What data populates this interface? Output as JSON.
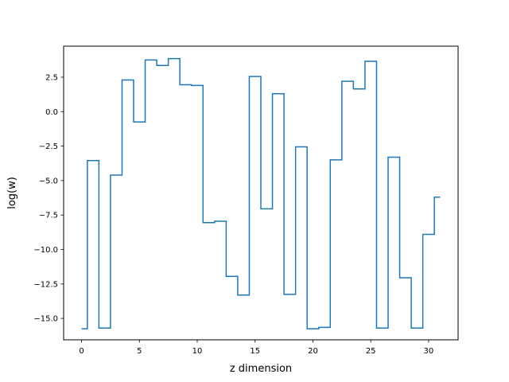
{
  "chart_data": {
    "type": "line",
    "drawstyle": "steps-post",
    "title": "",
    "xlabel": "z dimension",
    "ylabel": "log(w)",
    "xlim": [
      -1.55,
      32.55
    ],
    "ylim": [
      -16.55,
      4.75
    ],
    "xticks": [
      0,
      5,
      10,
      15,
      20,
      25,
      30
    ],
    "xtick_labels": [
      "0",
      "5",
      "10",
      "15",
      "20",
      "25",
      "30"
    ],
    "yticks": [
      -15.0,
      -12.5,
      -10.0,
      -7.5,
      -5.0,
      -2.5,
      0.0,
      2.5
    ],
    "ytick_labels": [
      "−15.0",
      "−12.5",
      "−10.0",
      "−7.5",
      "−5.0",
      "−2.5",
      "0.0",
      "2.5"
    ],
    "grid": false,
    "series": [
      {
        "color": "#1f77b4",
        "x": [
          0,
          0.5,
          1.5,
          2.5,
          3.5,
          4.5,
          5.5,
          6.5,
          7.5,
          8.5,
          9.5,
          10.5,
          11.5,
          12.5,
          13.5,
          14.5,
          15.5,
          16.5,
          17.5,
          18.5,
          19.5,
          20.5,
          21.5,
          22.5,
          23.5,
          24.5,
          25.5,
          26.5,
          27.5,
          28.5,
          29.5,
          30.5,
          31.0
        ],
        "y": [
          -15.75,
          -3.55,
          -15.7,
          -4.6,
          2.3,
          -0.75,
          3.75,
          3.35,
          3.85,
          1.95,
          1.9,
          -8.05,
          -7.95,
          -11.95,
          -13.3,
          2.55,
          -7.05,
          1.3,
          -13.25,
          -2.55,
          -15.75,
          -15.65,
          -3.5,
          2.2,
          1.65,
          3.65,
          -15.7,
          -3.3,
          -12.05,
          -15.7,
          -8.9,
          -6.2,
          -6.2
        ]
      }
    ]
  }
}
